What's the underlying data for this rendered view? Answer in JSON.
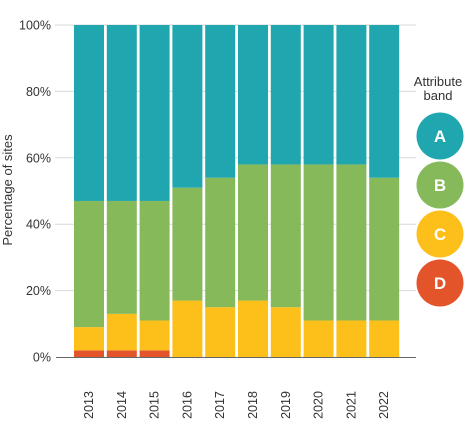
{
  "chart_data": {
    "type": "bar",
    "stacked": true,
    "categories": [
      "2013",
      "2014",
      "2015",
      "2016",
      "2017",
      "2018",
      "2019",
      "2020",
      "2021",
      "2022"
    ],
    "series": [
      {
        "name": "D",
        "color": "#e4542b",
        "values": [
          2,
          2,
          2,
          0,
          0,
          0,
          0,
          0,
          0,
          0
        ]
      },
      {
        "name": "C",
        "color": "#fdbf1a",
        "values": [
          7,
          11,
          9,
          17,
          15,
          17,
          15,
          11,
          11,
          11
        ]
      },
      {
        "name": "B",
        "color": "#85b95a",
        "values": [
          38,
          34,
          36,
          34,
          39,
          41,
          43,
          47,
          47,
          43
        ]
      },
      {
        "name": "A",
        "color": "#20a6ae",
        "values": [
          53,
          53,
          53,
          49,
          46,
          42,
          42,
          42,
          42,
          46
        ]
      }
    ],
    "ylabel": "Percentage of sites",
    "xlabel": "",
    "ylim": [
      0,
      100
    ],
    "yticks": [
      "0%",
      "20%",
      "40%",
      "60%",
      "80%",
      "100%"
    ],
    "ytick_values": [
      0,
      20,
      40,
      60,
      80,
      100
    ],
    "grid": true,
    "legend": {
      "title": [
        "Attribute",
        "band"
      ],
      "placement": "right",
      "order": [
        "A",
        "B",
        "C",
        "D"
      ]
    }
  }
}
